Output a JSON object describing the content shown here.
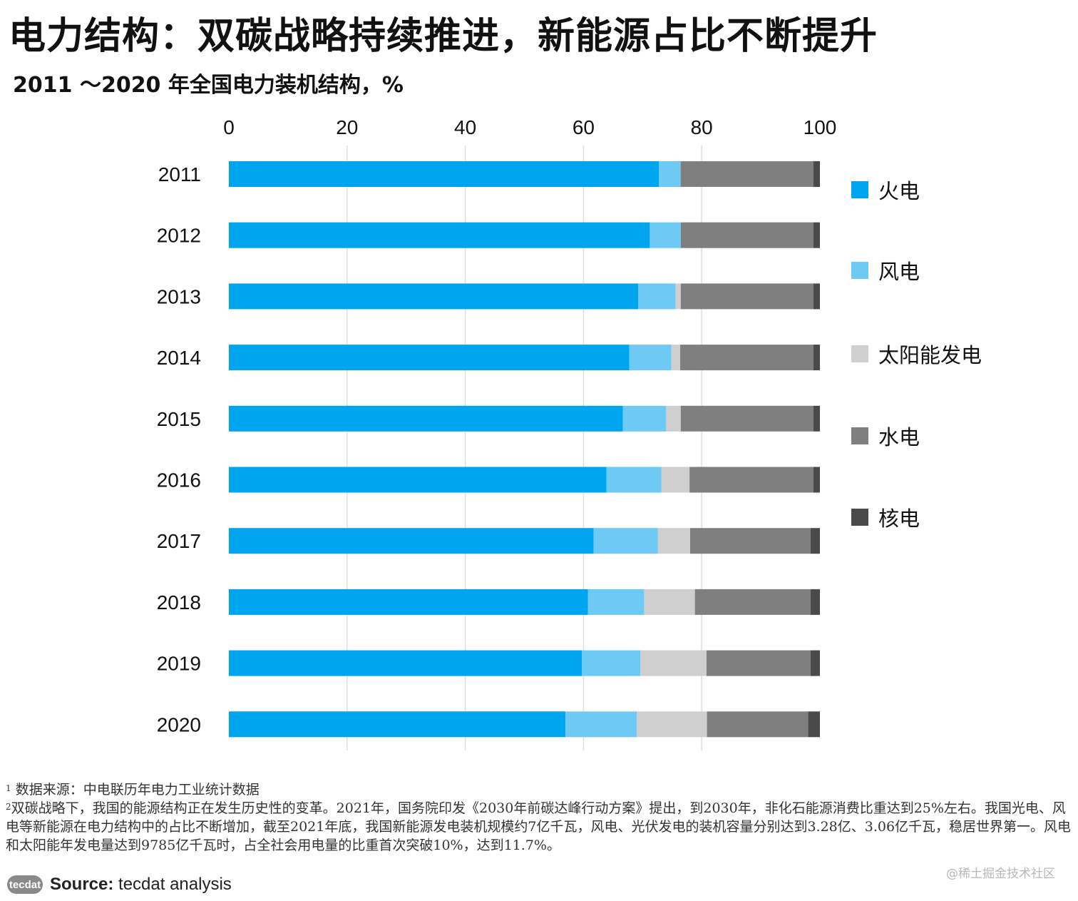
{
  "title": "电力结构：双碳战略持续推进，新能源占比不断提升",
  "subtitle": "2011 ～2020 年全国电力装机结构，%",
  "chart_data": {
    "type": "bar",
    "orientation": "horizontal",
    "stacked": true,
    "categories": [
      "2011",
      "2012",
      "2013",
      "2014",
      "2015",
      "2016",
      "2017",
      "2018",
      "2019",
      "2020"
    ],
    "series": [
      {
        "name": "火电",
        "color": "#00a5ef",
        "values": [
          73.5,
          72.0,
          70.0,
          68.5,
          67.4,
          64.6,
          62.4,
          61.5,
          60.4,
          57.5
        ]
      },
      {
        "name": "风电",
        "color": "#6ec9f5",
        "values": [
          3.7,
          5.3,
          6.4,
          7.2,
          7.4,
          9.4,
          11.0,
          9.6,
          10.0,
          12.2
        ]
      },
      {
        "name": "太阳能发电",
        "color": "#cfcfcf",
        "values": [
          0.0,
          0.0,
          0.9,
          1.5,
          2.5,
          4.8,
          5.5,
          8.7,
          11.3,
          12.0
        ]
      },
      {
        "name": "水电",
        "color": "#7f7f7f",
        "values": [
          22.7,
          22.7,
          22.7,
          22.8,
          22.7,
          21.2,
          20.6,
          19.8,
          17.8,
          17.3
        ]
      },
      {
        "name": "核电",
        "color": "#4a4a4a",
        "values": [
          1.1,
          1.1,
          1.1,
          1.1,
          1.1,
          1.1,
          1.6,
          1.6,
          1.6,
          2.0
        ]
      }
    ],
    "xticks": [
      0,
      20,
      40,
      60,
      80,
      100
    ],
    "xlim": [
      0,
      100
    ],
    "grid": true,
    "legend_position": "right"
  },
  "footnotes": {
    "note1_marker": "1",
    "note1": "数据来源：中电联历年电力工业统计数据",
    "note2_marker": "2",
    "note2": "双碳战略下，我国的能源结构正在发生历史性的变革。2021年，国务院印发《2030年前碳达峰行动方案》提出，到2030年，非化石能源消费比重达到25%左右。我国光电、风电等新能源在电力结构中的占比不断增加，截至2021年底，我国新能源发电装机规模约7亿千瓦，风电、光伏发电的装机容量分别达到3.28亿、3.06亿千瓦，稳居世界第一。风电和太阳能年发电量达到9785亿千瓦时，占全社会用电量的比重首次突破10%，达到11.7%。"
  },
  "source": {
    "logo_text": "tecdat",
    "label": "Source:",
    "text": "tecdat analysis"
  },
  "watermark": "@稀土掘金技术社区"
}
